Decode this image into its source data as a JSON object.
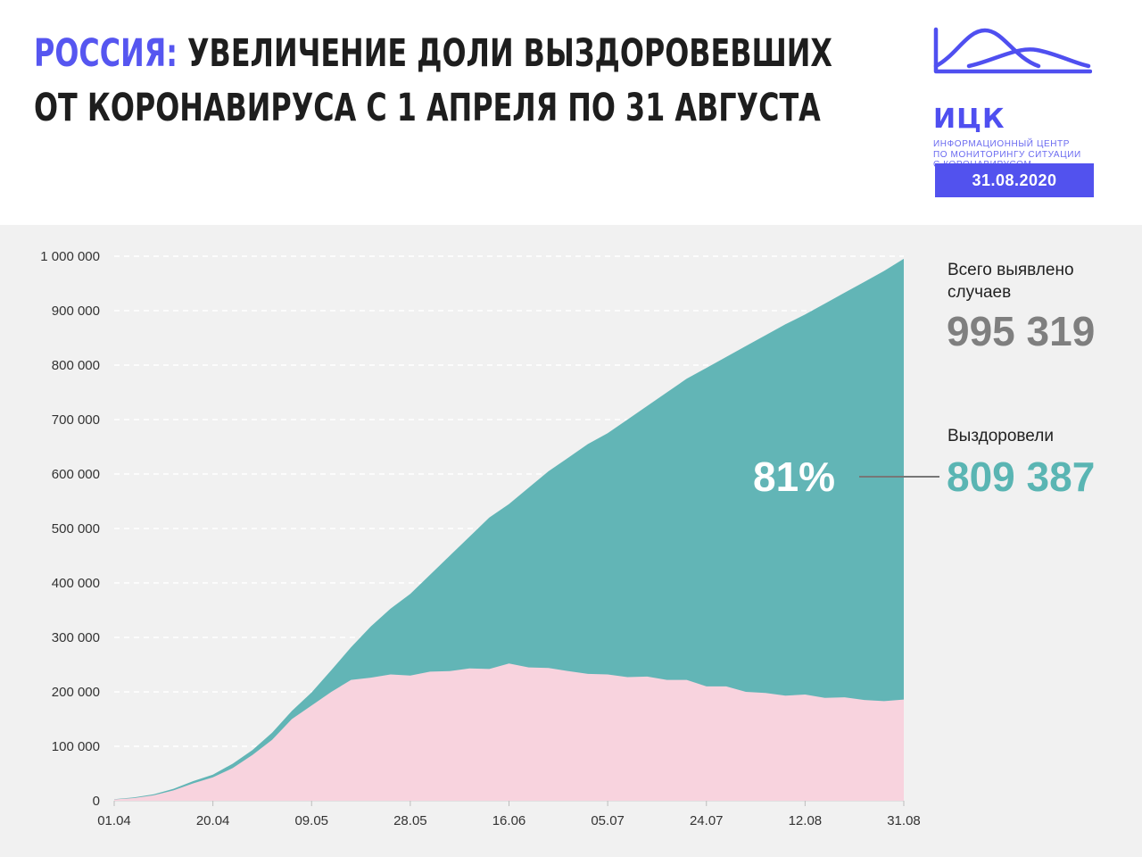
{
  "header": {
    "title_accent": "РОССИЯ:",
    "title_line1_rest": "УВЕЛИЧЕНИЕ ДОЛИ ВЫЗДОРОВЕВШИХ",
    "title_line2": "ОТ КОРОНАВИРУСА С 1 АПРЕЛЯ ПО 31 АВГУСТА"
  },
  "logo": {
    "name": "ИЦК",
    "subtitle_lines": [
      "ИНФОРМАЦИОННЫЙ ЦЕНТР",
      "ПО МОНИТОРИНГУ СИТУАЦИИ",
      "С КОРОНАВИРУСОМ"
    ],
    "date": "31.08.2020",
    "color": "#5252ee"
  },
  "summary": {
    "total_label": "Всего выявлено случаев",
    "total_value": "995 319",
    "recovered_label": "Выздоровели",
    "recovered_value": "809 387",
    "recovered_share": "81%"
  },
  "colors": {
    "accent": "#5656f0",
    "recovered": "#62b5b6",
    "active": "#f8d3de",
    "background": "#f1f1f1"
  },
  "chart_data": {
    "type": "area",
    "title": "",
    "xlabel": "",
    "ylabel": "",
    "ylim": [
      0,
      1000000
    ],
    "yticks": [
      0,
      100000,
      200000,
      300000,
      400000,
      500000,
      600000,
      700000,
      800000,
      900000,
      1000000
    ],
    "ytick_labels": [
      "0",
      "100 000",
      "200 000",
      "300 000",
      "400 000",
      "500 000",
      "600 000",
      "700 000",
      "800 000",
      "900 000",
      "1 000 000"
    ],
    "xtick_labels": [
      "01.04",
      "20.04",
      "09.05",
      "28.05",
      "16.06",
      "05.07",
      "24.07",
      "12.08",
      "31.08"
    ],
    "x": [
      "01.04",
      "05.04",
      "09.04",
      "13.04",
      "17.04",
      "20.04",
      "24.04",
      "28.04",
      "02.05",
      "06.05",
      "09.05",
      "13.05",
      "17.05",
      "21.05",
      "25.05",
      "28.05",
      "01.06",
      "05.06",
      "09.06",
      "13.06",
      "16.06",
      "20.06",
      "24.06",
      "28.06",
      "02.07",
      "05.07",
      "09.07",
      "13.07",
      "17.07",
      "21.07",
      "24.07",
      "28.07",
      "01.08",
      "05.08",
      "09.08",
      "12.08",
      "16.08",
      "20.08",
      "24.08",
      "28.08",
      "31.08"
    ],
    "grid": true,
    "legend": "none",
    "series": [
      {
        "role": "total",
        "color": "#62b5b6",
        "values": [
          3000,
          6000,
          12000,
          22000,
          36000,
          48000,
          68000,
          93000,
          125000,
          165000,
          199000,
          240000,
          282000,
          320000,
          353000,
          380000,
          415000,
          450000,
          485000,
          520000,
          545000,
          575000,
          605000,
          630000,
          655000,
          675000,
          700000,
          725000,
          750000,
          775000,
          795000,
          815000,
          835000,
          855000,
          875000,
          893000,
          913000,
          933000,
          953000,
          973000,
          995319
        ]
      },
      {
        "role": "active",
        "color": "#f8d3de",
        "values": [
          2500,
          5000,
          10000,
          19000,
          32000,
          43000,
          60000,
          84000,
          112000,
          150000,
          175000,
          200000,
          222000,
          226000,
          232000,
          230000,
          237000,
          238000,
          243000,
          242000,
          252000,
          245000,
          244000,
          238000,
          233000,
          232000,
          227000,
          228000,
          222000,
          222000,
          210000,
          210000,
          200000,
          198000,
          193000,
          195000,
          189000,
          190000,
          185000,
          183000,
          185932
        ]
      }
    ]
  }
}
